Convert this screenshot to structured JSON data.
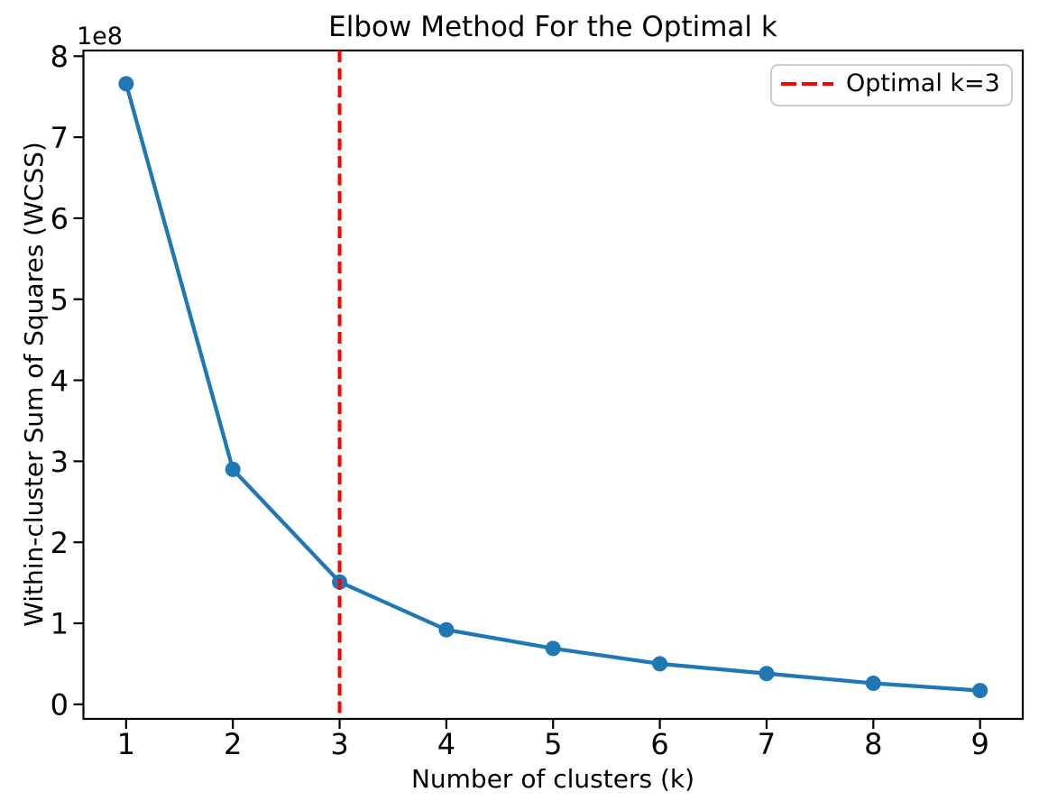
{
  "figure": {
    "background": "#ffffff"
  },
  "chart_data": {
    "type": "line",
    "title": "Elbow Method For the Optimal k",
    "xlabel": "Number of clusters (k)",
    "ylabel": "Within-cluster Sum of Squares (WCSS)",
    "y_offset_label": "1e8",
    "x": [
      1,
      2,
      3,
      4,
      5,
      6,
      7,
      8,
      9
    ],
    "series": [
      {
        "name": "WCSS",
        "color": "#1f77b4",
        "marker": "circle",
        "values": [
          766000000,
          290000000,
          151000000,
          92000000,
          69000000,
          50000000,
          38000000,
          26000000,
          17000000
        ]
      }
    ],
    "annotations": [
      {
        "type": "vline",
        "x": 3,
        "color": "#ff0000",
        "linestyle": "dashed"
      }
    ],
    "legend": {
      "position": "upper right",
      "entries": [
        {
          "label": "Optimal k=3",
          "color": "#ff0000",
          "linestyle": "dashed"
        }
      ]
    },
    "x_ticks": [
      1,
      2,
      3,
      4,
      5,
      6,
      7,
      8,
      9
    ],
    "y_ticks": [
      0,
      1,
      2,
      3,
      4,
      5,
      6,
      7,
      8
    ],
    "y_tick_scale": 100000000,
    "xlim": [
      0.6,
      9.4
    ],
    "ylim": [
      -18000000,
      807000000
    ],
    "grid": false,
    "axis_color": "#000000"
  }
}
